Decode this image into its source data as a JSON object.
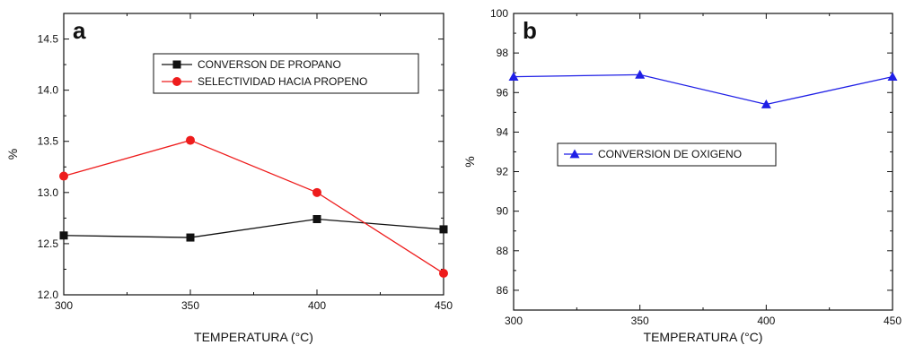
{
  "chart_data": [
    {
      "type": "line",
      "panel_label": "a",
      "xlabel": "TEMPERATURA (°C)",
      "ylabel": "%",
      "xlim": [
        300,
        450
      ],
      "ylim": [
        12.0,
        14.75
      ],
      "xticks": [
        "300",
        "350",
        "400",
        "450"
      ],
      "yticks": [
        "12.0",
        "12.5",
        "13.0",
        "13.5",
        "14.0",
        "14.5"
      ],
      "x": [
        300,
        350,
        400,
        450
      ],
      "legend_position": "upper-right",
      "grid": false,
      "series": [
        {
          "name": "CONVERSON DE PROPANO",
          "values": [
            12.58,
            12.56,
            12.74,
            12.64
          ],
          "color": "#111111",
          "marker": "square"
        },
        {
          "name": "SELECTIVIDAD HACIA PROPENO",
          "values": [
            13.16,
            13.51,
            13.0,
            12.21
          ],
          "color": "#ee1c1c",
          "marker": "circle"
        }
      ]
    },
    {
      "type": "line",
      "panel_label": "b",
      "xlabel": "TEMPERATURA (°C)",
      "ylabel": "%",
      "xlim": [
        300,
        450
      ],
      "ylim": [
        85,
        100
      ],
      "xticks": [
        "300",
        "350",
        "400",
        "450"
      ],
      "yticks": [
        "86",
        "88",
        "90",
        "92",
        "94",
        "96",
        "98",
        "100"
      ],
      "x": [
        300,
        350,
        400,
        450
      ],
      "legend_position": "middle-left",
      "grid": false,
      "series": [
        {
          "name": "CONVERSION DE OXIGENO",
          "values": [
            96.8,
            96.9,
            95.4,
            96.8
          ],
          "color": "#1f1fe6",
          "marker": "triangle"
        }
      ]
    }
  ]
}
